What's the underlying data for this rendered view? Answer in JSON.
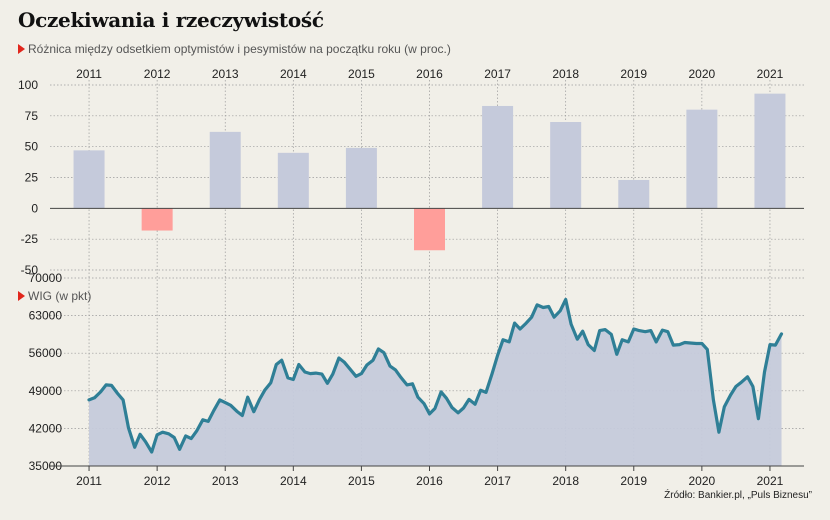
{
  "title": "Oczekiwania i rzeczywistość",
  "subtitle": "Różnica między odsetkiem optymistów i pesymistów na początku roku (w proc.)",
  "source": "Źródło: Bankier.pl, „Puls Biznesu”",
  "colors": {
    "positive_bar": "#c5cadb",
    "negative_bar": "#ff9e9a",
    "line": "#2f7f96",
    "area": "#c5cadb",
    "background": "#f1efe8",
    "marker": "#e1261c"
  },
  "chart_data": [
    {
      "type": "bar",
      "categories": [
        "2011",
        "2012",
        "2013",
        "2014",
        "2015",
        "2016",
        "2017",
        "2018",
        "2019",
        "2020",
        "2021"
      ],
      "values": [
        47,
        -18,
        62,
        45,
        49,
        -34,
        83,
        70,
        23,
        80,
        93
      ],
      "yticks": [
        "100",
        "75",
        "50",
        "25",
        "0",
        "-25",
        "-50"
      ],
      "ylim": [
        -50,
        100
      ],
      "grid": true
    },
    {
      "type": "area",
      "label": "WIG (w pkt)",
      "xticks": [
        "2011",
        "2012",
        "2013",
        "2014",
        "2015",
        "2016",
        "2017",
        "2018",
        "2019",
        "2020",
        "2021"
      ],
      "yticks": [
        "70000",
        "63000",
        "56000",
        "49000",
        "42000",
        "35000"
      ],
      "ylim": [
        35000,
        70000
      ],
      "grid": true,
      "series": [
        {
          "x": [
            2011.0,
            2011.08,
            2011.17,
            2011.25,
            2011.33,
            2011.42,
            2011.5,
            2011.58,
            2011.67,
            2011.75,
            2011.83,
            2011.92,
            2012.0,
            2012.08,
            2012.17,
            2012.25,
            2012.33,
            2012.42,
            2012.5,
            2012.58,
            2012.67,
            2012.75,
            2012.83,
            2012.92,
            2013.0,
            2013.08,
            2013.17,
            2013.25,
            2013.33,
            2013.42,
            2013.5,
            2013.58,
            2013.67,
            2013.75,
            2013.83,
            2013.92,
            2014.0,
            2014.08,
            2014.17,
            2014.25,
            2014.33,
            2014.42,
            2014.5,
            2014.58,
            2014.67,
            2014.75,
            2014.83,
            2014.92,
            2015.0,
            2015.08,
            2015.17,
            2015.25,
            2015.33,
            2015.42,
            2015.5,
            2015.58,
            2015.67,
            2015.75,
            2015.83,
            2015.92,
            2016.0,
            2016.08,
            2016.17,
            2016.25,
            2016.33,
            2016.42,
            2016.5,
            2016.58,
            2016.67,
            2016.75,
            2016.83,
            2016.92,
            2017.0,
            2017.08,
            2017.17,
            2017.25,
            2017.33,
            2017.42,
            2017.5,
            2017.58,
            2017.67,
            2017.75,
            2017.83,
            2017.92,
            2018.0,
            2018.08,
            2018.17,
            2018.25,
            2018.33,
            2018.42,
            2018.5,
            2018.58,
            2018.67,
            2018.75,
            2018.83,
            2018.92,
            2019.0,
            2019.08,
            2019.17,
            2019.25,
            2019.33,
            2019.42,
            2019.5,
            2019.58,
            2019.67,
            2019.75,
            2019.83,
            2019.92,
            2020.0,
            2020.08,
            2020.17,
            2020.25,
            2020.33,
            2020.42,
            2020.5,
            2020.58,
            2020.67,
            2020.75,
            2020.83,
            2020.92,
            2021.0,
            2021.08,
            2021.17
          ],
          "values": [
            47300,
            47700,
            48800,
            50100,
            50000,
            48500,
            47300,
            42100,
            38500,
            40900,
            39500,
            37600,
            40800,
            41300,
            41000,
            40300,
            38100,
            40600,
            40100,
            41500,
            43600,
            43300,
            45300,
            47300,
            46800,
            46300,
            45200,
            44400,
            47800,
            45100,
            47300,
            49100,
            50500,
            53900,
            54700,
            51400,
            51100,
            53900,
            52500,
            52200,
            52300,
            52100,
            50400,
            52100,
            55100,
            54300,
            53100,
            51700,
            52200,
            53800,
            54700,
            56800,
            56100,
            53600,
            52900,
            51500,
            50100,
            50300,
            47800,
            46600,
            44700,
            45700,
            48800,
            47600,
            45900,
            44900,
            45800,
            47400,
            46500,
            49100,
            48700,
            52200,
            55600,
            58500,
            58100,
            61600,
            60500,
            61600,
            62700,
            65000,
            64500,
            64700,
            62700,
            63900,
            66000,
            61400,
            58600,
            60100,
            57600,
            56500,
            60200,
            60400,
            59500,
            55800,
            58500,
            58100,
            60500,
            60200,
            60000,
            60200,
            58100,
            60300,
            60000,
            57500,
            57600,
            58000,
            57900,
            57800,
            57800,
            56700,
            47300,
            41300,
            46000,
            48200,
            49800,
            50600,
            51600,
            49800,
            43800,
            52500,
            57600,
            57500,
            59600
          ]
        }
      ]
    }
  ]
}
